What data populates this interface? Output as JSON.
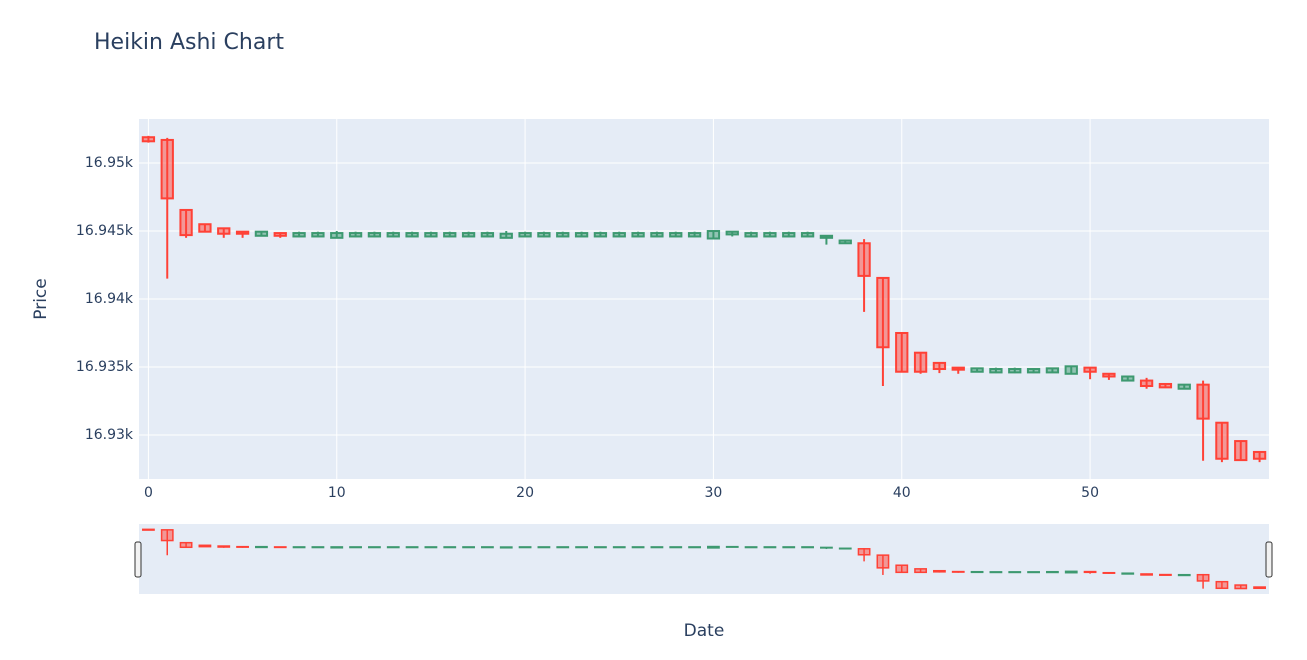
{
  "chart_data": {
    "type": "candlestick",
    "title": "Heikin Ashi Chart",
    "x_title": "Date",
    "y_title": "Price",
    "x": [
      0,
      1,
      2,
      3,
      4,
      5,
      6,
      7,
      8,
      9,
      10,
      11,
      12,
      13,
      14,
      15,
      16,
      17,
      18,
      19,
      20,
      21,
      22,
      23,
      24,
      25,
      26,
      27,
      28,
      29,
      30,
      31,
      32,
      33,
      34,
      35,
      36,
      37,
      38,
      39,
      40,
      41,
      42,
      43,
      44,
      45,
      46,
      47,
      48,
      49,
      50,
      51,
      52,
      53,
      54,
      55,
      56,
      57,
      58,
      59
    ],
    "open": [
      16951.9,
      16951.7,
      16946.55,
      16945.5,
      16945.2,
      16944.95,
      16944.65,
      16944.85,
      16944.6,
      16944.6,
      16944.5,
      16944.6,
      16944.6,
      16944.6,
      16944.6,
      16944.6,
      16944.6,
      16944.6,
      16944.6,
      16944.5,
      16944.6,
      16944.6,
      16944.6,
      16944.6,
      16944.6,
      16944.6,
      16944.6,
      16944.6,
      16944.6,
      16944.6,
      16944.45,
      16944.75,
      16944.6,
      16944.6,
      16944.6,
      16944.6,
      16944.5,
      16944.1,
      16944.1,
      16941.55,
      16937.5,
      16936.05,
      16935.3,
      16934.95,
      16934.65,
      16934.6,
      16934.6,
      16934.6,
      16934.6,
      16934.5,
      16934.95,
      16934.5,
      16934.0,
      16934.0,
      16933.75,
      16933.4,
      16933.7,
      16930.9,
      16929.55,
      16928.75
    ],
    "high": [
      16952.0,
      16951.85,
      16946.6,
      16945.55,
      16945.25,
      16944.95,
      16945.0,
      16944.9,
      16944.95,
      16944.95,
      16945.0,
      16944.95,
      16944.95,
      16944.95,
      16944.95,
      16944.95,
      16944.95,
      16944.95,
      16944.95,
      16945.0,
      16944.95,
      16944.95,
      16944.95,
      16944.95,
      16944.95,
      16944.95,
      16944.95,
      16944.95,
      16944.95,
      16944.95,
      16945.05,
      16945.0,
      16944.95,
      16944.95,
      16944.95,
      16944.95,
      16944.7,
      16944.35,
      16944.4,
      16941.6,
      16937.55,
      16936.1,
      16935.35,
      16935.0,
      16934.95,
      16934.95,
      16934.95,
      16934.9,
      16934.95,
      16935.1,
      16935.0,
      16934.55,
      16934.35,
      16934.2,
      16933.8,
      16933.75,
      16934.0,
      16930.95,
      16929.6,
      16928.8
    ],
    "low": [
      16951.5,
      16941.5,
      16944.5,
      16944.9,
      16944.5,
      16944.5,
      16944.65,
      16944.5,
      16944.55,
      16944.55,
      16944.5,
      16944.55,
      16944.55,
      16944.55,
      16944.55,
      16944.55,
      16944.55,
      16944.55,
      16944.55,
      16944.45,
      16944.55,
      16944.55,
      16944.55,
      16944.55,
      16944.55,
      16944.55,
      16944.55,
      16944.55,
      16944.55,
      16944.55,
      16944.45,
      16944.6,
      16944.55,
      16944.55,
      16944.55,
      16944.55,
      16944.0,
      16944.05,
      16939.05,
      16933.6,
      16934.6,
      16934.5,
      16934.55,
      16934.5,
      16934.6,
      16934.55,
      16934.55,
      16934.55,
      16934.6,
      16934.5,
      16934.1,
      16934.05,
      16933.95,
      16933.4,
      16933.45,
      16933.35,
      16928.1,
      16928.0,
      16928.1,
      16928.0
    ],
    "close": [
      16951.6,
      16947.4,
      16944.7,
      16944.95,
      16944.8,
      16944.8,
      16944.95,
      16944.65,
      16944.85,
      16944.85,
      16944.85,
      16944.85,
      16944.85,
      16944.85,
      16944.85,
      16944.85,
      16944.85,
      16944.85,
      16944.85,
      16944.8,
      16944.85,
      16944.85,
      16944.85,
      16944.85,
      16944.85,
      16944.85,
      16944.85,
      16944.85,
      16944.85,
      16944.85,
      16945.0,
      16944.95,
      16944.85,
      16944.85,
      16944.85,
      16944.85,
      16944.65,
      16944.3,
      16941.7,
      16936.45,
      16934.65,
      16934.65,
      16934.85,
      16934.8,
      16934.9,
      16934.85,
      16934.85,
      16934.85,
      16934.9,
      16935.05,
      16934.65,
      16934.3,
      16934.3,
      16933.6,
      16933.5,
      16933.7,
      16931.2,
      16928.25,
      16928.15,
      16928.25
    ],
    "increasing_color": "#3d9970",
    "decreasing_color": "#ff4136",
    "xlim": [
      -0.5,
      59.5
    ],
    "ylim": [
      16926.76,
      16953.24
    ],
    "xticks": [
      0,
      10,
      20,
      30,
      40,
      50
    ],
    "yticks": [
      {
        "value": 16930,
        "label": "16.93k"
      },
      {
        "value": 16935,
        "label": "16.935k"
      },
      {
        "value": 16940,
        "label": "16.94k"
      },
      {
        "value": 16945,
        "label": "16.945k"
      },
      {
        "value": 16950,
        "label": "16.95k"
      }
    ],
    "grid": true,
    "rangeslider": true
  }
}
